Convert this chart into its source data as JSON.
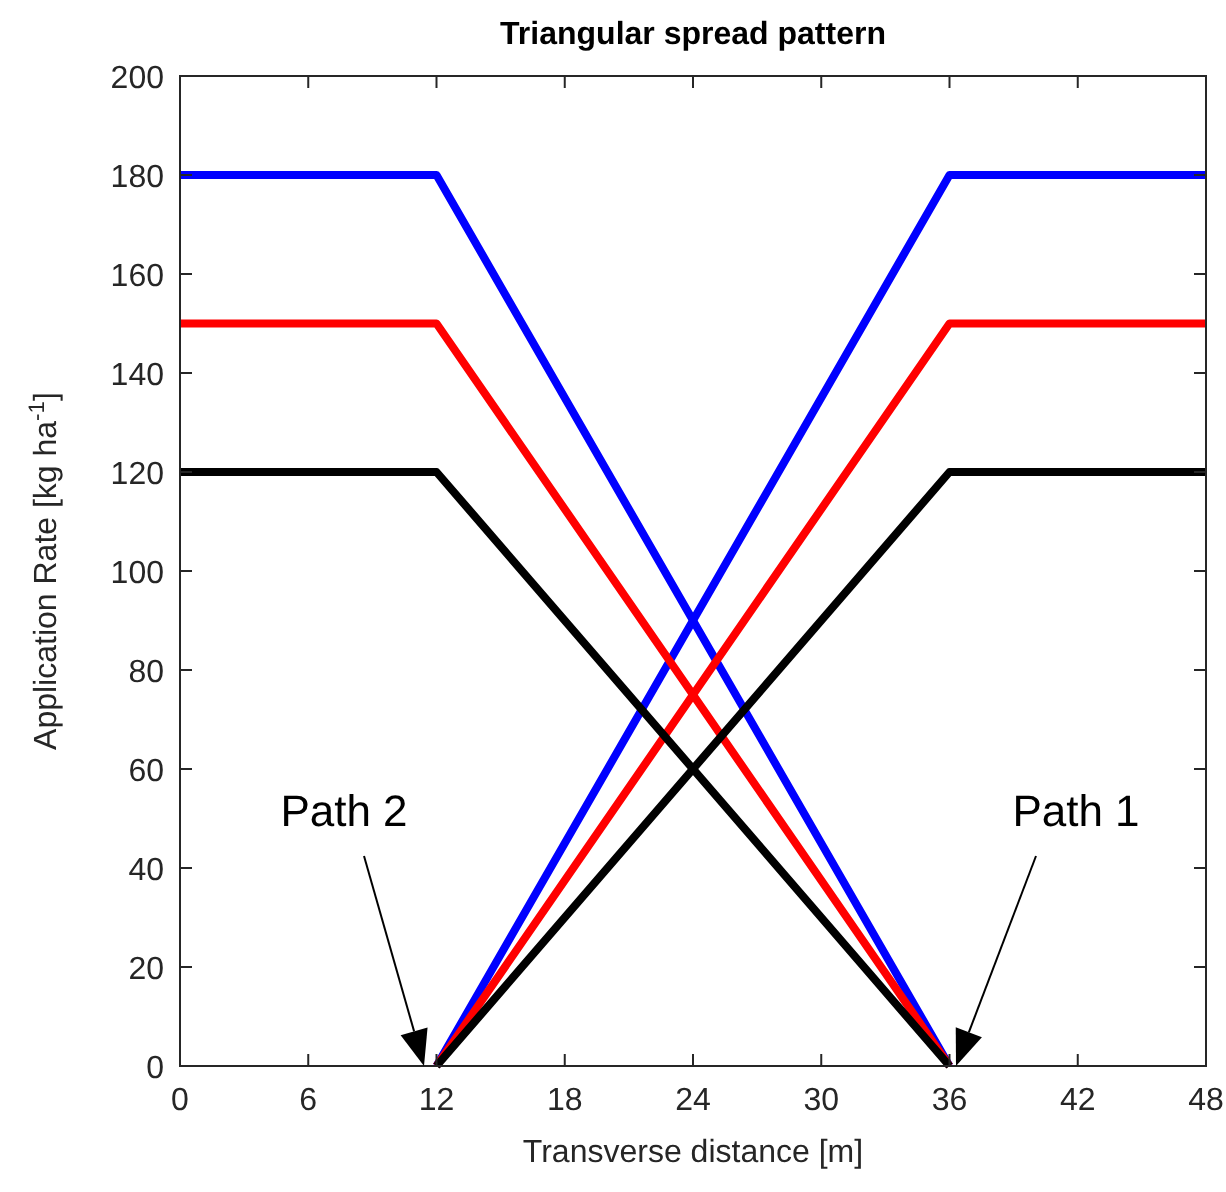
{
  "chart_data": {
    "type": "line",
    "title": "Triangular spread pattern",
    "xlabel": "Transverse distance [m]",
    "ylabel": "Application Rate [kg ha$^{-1}$]",
    "xlim": [
      0,
      48
    ],
    "xticks": [
      0,
      6,
      12,
      18,
      24,
      30,
      36,
      42,
      48
    ],
    "ylim": [
      0,
      200
    ],
    "yticks": [
      0,
      20,
      40,
      60,
      80,
      100,
      120,
      140,
      160,
      180,
      200
    ],
    "grid": false,
    "marker": "none",
    "line_style": "solid",
    "series": [
      {
        "color": "#0000ff",
        "x": [
          0,
          12,
          36
        ],
        "values": [
          180,
          180,
          0
        ]
      },
      {
        "color": "#0000ff",
        "x": [
          12,
          36,
          48
        ],
        "values": [
          0,
          180,
          180
        ]
      },
      {
        "color": "#ff0000",
        "x": [
          0,
          12,
          36
        ],
        "values": [
          150,
          150,
          0
        ]
      },
      {
        "color": "#ff0000",
        "x": [
          12,
          36,
          48
        ],
        "values": [
          0,
          150,
          150
        ]
      },
      {
        "color": "#000000",
        "x": [
          0,
          12,
          36
        ],
        "values": [
          120,
          120,
          0
        ]
      },
      {
        "color": "#000000",
        "x": [
          12,
          36,
          48
        ],
        "values": [
          0,
          120,
          120
        ]
      }
    ],
    "annotations": [
      "Path 2",
      "Path 1"
    ]
  }
}
